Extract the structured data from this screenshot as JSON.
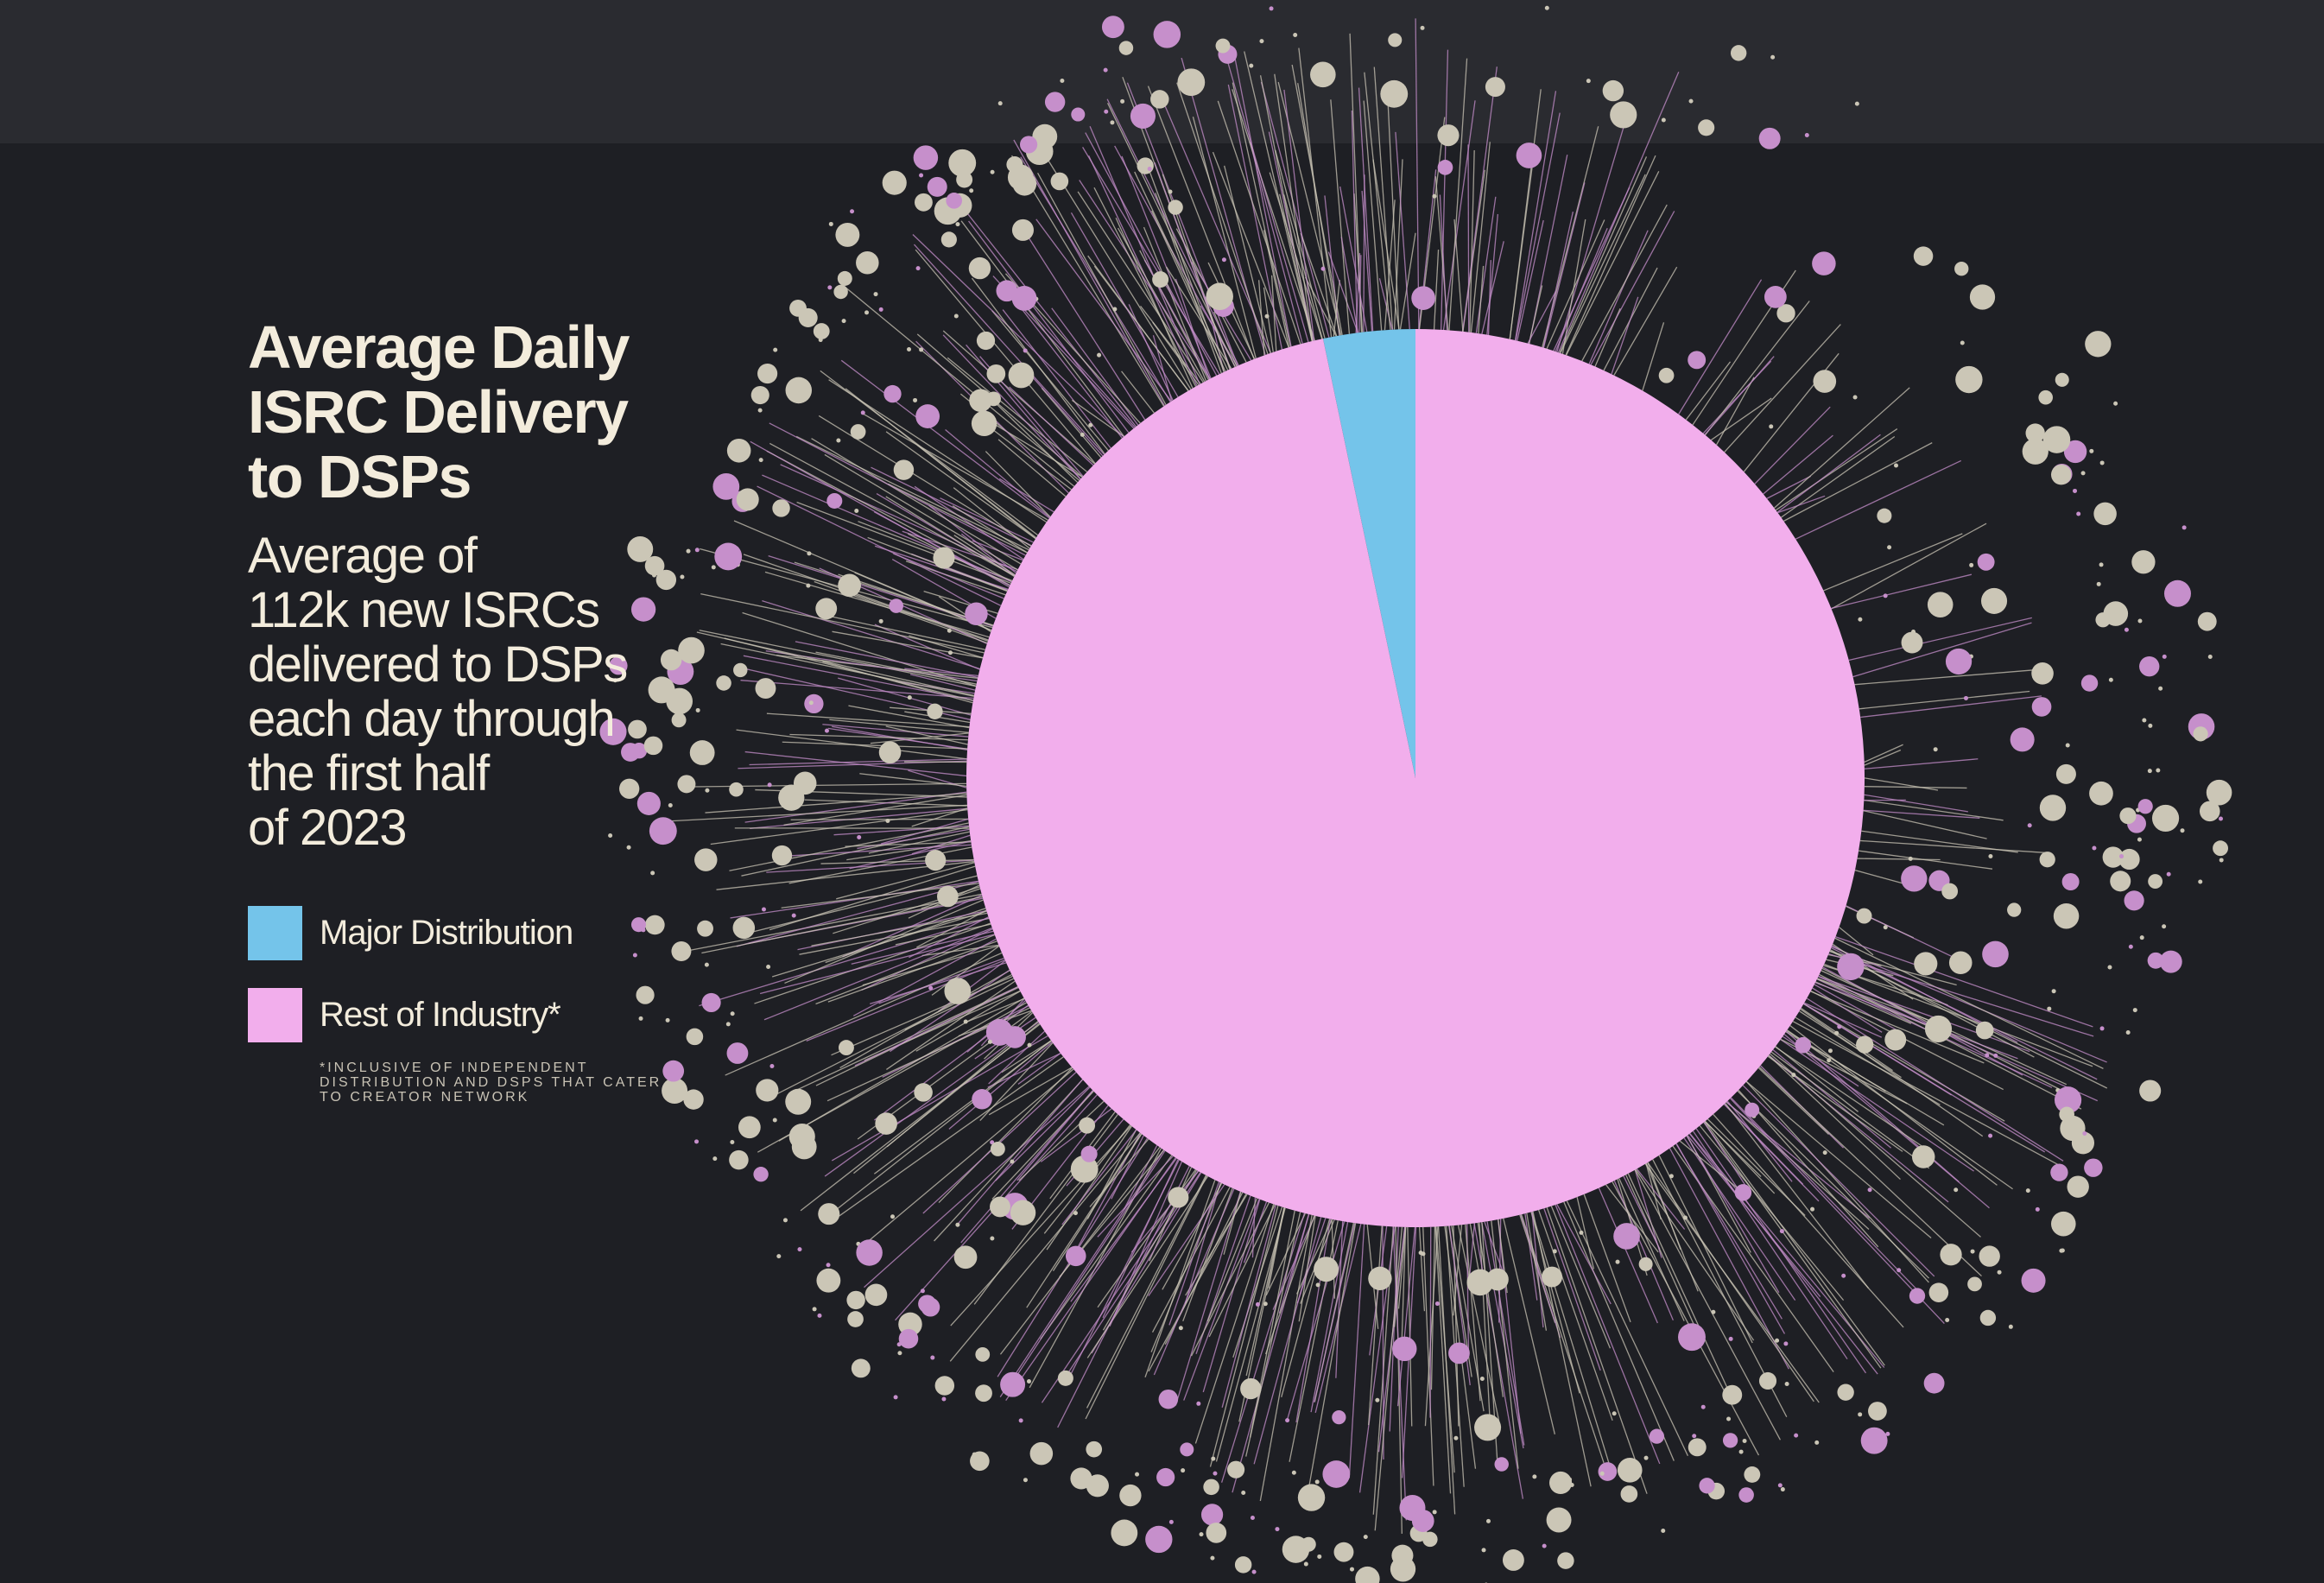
{
  "chart_data": {
    "type": "pie",
    "title": "Average Daily ISRC Delivery to DSPs",
    "subtitle": "Average of 112k new ISRCs delivered to DSPs each day through the first half of 2023",
    "slices": [
      {
        "label": "Major Distribution",
        "value": 3.3,
        "color": "#74c4ea"
      },
      {
        "label": "Rest of Industry*",
        "value": 96.7,
        "color": "#f2aeec"
      }
    ],
    "unit": "percent",
    "legend_position": "left",
    "footnote": "*INCLUSIVE OF INDEPENDENT DISTRIBUTION AND DSPS THAT CATER TO CREATOR NETWORK"
  },
  "title_lines": [
    "Average Daily",
    "ISRC Delivery",
    "to DSPs"
  ],
  "subtitle_lines": [
    "Average of",
    "112k new ISRCs",
    "delivered to DSPs",
    "each day through",
    "the first half",
    "of 2023"
  ],
  "colors": {
    "background": "#1e1f24",
    "band": "#2a2b30",
    "text": "#f3ecdc",
    "dot_beige": "#cbc6b6",
    "dot_purple": "#c68fcb"
  }
}
